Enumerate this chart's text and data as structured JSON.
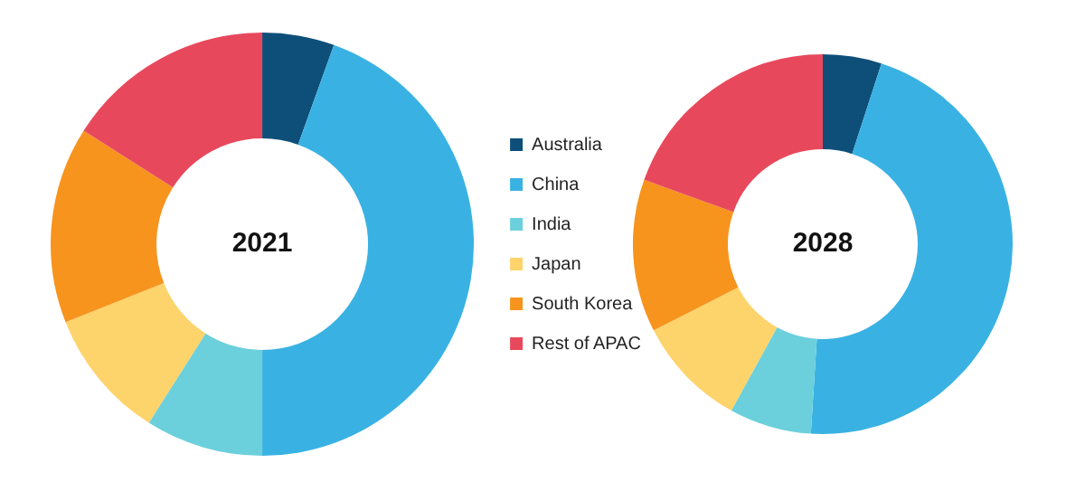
{
  "chart_data": {
    "type": "donut",
    "categories": [
      "Australia",
      "China",
      "India",
      "Japan",
      "South Korea",
      "Rest of APAC"
    ],
    "colors": [
      "#0e4f7a",
      "#39b2e3",
      "#6bd0dc",
      "#fdd36b",
      "#f7941d",
      "#e8485c"
    ],
    "legend": "right",
    "series": [
      {
        "name": "2021",
        "values": [
          5.5,
          44.5,
          9,
          10,
          15,
          16
        ]
      },
      {
        "name": "2028",
        "values": [
          5,
          46,
          7,
          9.5,
          13,
          19.5
        ]
      }
    ]
  }
}
